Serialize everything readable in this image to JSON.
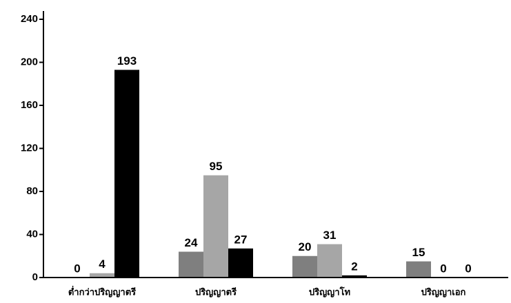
{
  "chart_data": {
    "type": "bar",
    "categories": [
      "ต่ำกว่าปริญญาตรี",
      "ปริญญาตรี",
      "ปริญญาโท",
      "ปริญญาเอก"
    ],
    "series": [
      {
        "color": "#7f7f7f",
        "values": [
          0,
          24,
          20,
          15
        ]
      },
      {
        "color": "#a6a6a6",
        "values": [
          4,
          95,
          31,
          0
        ]
      },
      {
        "color": "#000000",
        "values": [
          193,
          27,
          2,
          0
        ]
      }
    ],
    "ylim": [
      0,
      240
    ],
    "yticks": [
      0,
      40,
      80,
      120,
      160,
      200,
      240
    ],
    "grid": false
  }
}
